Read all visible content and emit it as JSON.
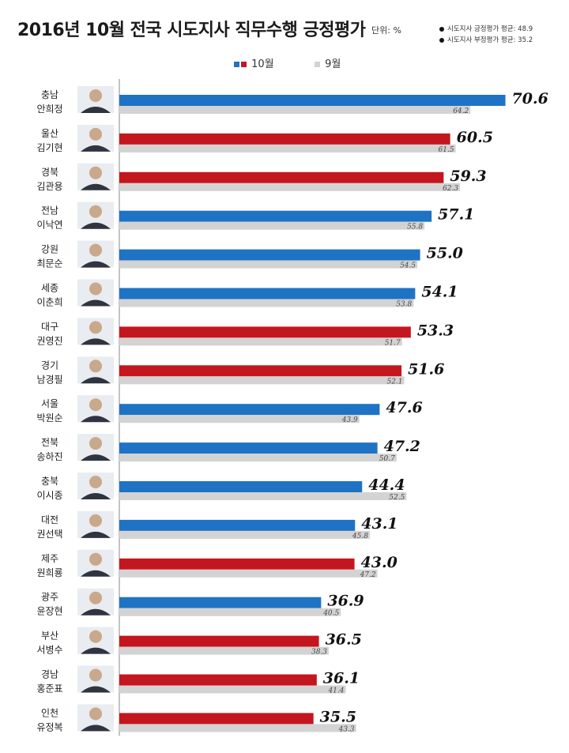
{
  "title": "2016년 10월 전국 시도지사 직무수행 긍정평가",
  "unit": "단위: %",
  "averages": [
    {
      "label": "시도지사 긍정평가 평균: 48.9"
    },
    {
      "label": "시도지사 부정평가 평균: 35.2"
    }
  ],
  "colors": {
    "blue": "#1f73c4",
    "red": "#c4161e",
    "prev": "#d3d3d3"
  },
  "chart_data": {
    "type": "bar",
    "orientation": "horizontal",
    "title": "2016년 10월 전국 시도지사 직무수행 긍정평가",
    "legend": [
      "10월",
      "9월"
    ],
    "legend_position": "top",
    "xlim": [
      0,
      75
    ],
    "categories": [
      {
        "region": "충남",
        "name": "안희정",
        "party_color": "blue"
      },
      {
        "region": "울산",
        "name": "김기현",
        "party_color": "red"
      },
      {
        "region": "경북",
        "name": "김관용",
        "party_color": "red"
      },
      {
        "region": "전남",
        "name": "이낙연",
        "party_color": "blue"
      },
      {
        "region": "강원",
        "name": "최문순",
        "party_color": "blue"
      },
      {
        "region": "세종",
        "name": "이춘희",
        "party_color": "blue"
      },
      {
        "region": "대구",
        "name": "권영진",
        "party_color": "red"
      },
      {
        "region": "경기",
        "name": "남경필",
        "party_color": "red"
      },
      {
        "region": "서울",
        "name": "박원순",
        "party_color": "blue"
      },
      {
        "region": "전북",
        "name": "송하진",
        "party_color": "blue"
      },
      {
        "region": "충북",
        "name": "이시종",
        "party_color": "blue"
      },
      {
        "region": "대전",
        "name": "권선택",
        "party_color": "blue"
      },
      {
        "region": "제주",
        "name": "원희룡",
        "party_color": "red"
      },
      {
        "region": "광주",
        "name": "윤장현",
        "party_color": "blue"
      },
      {
        "region": "부산",
        "name": "서병수",
        "party_color": "red"
      },
      {
        "region": "경남",
        "name": "홍준표",
        "party_color": "red"
      },
      {
        "region": "인천",
        "name": "유정복",
        "party_color": "red"
      }
    ],
    "series": [
      {
        "name": "10월",
        "values": [
          70.6,
          60.5,
          59.3,
          57.1,
          55.0,
          54.1,
          53.3,
          51.6,
          47.6,
          47.2,
          44.4,
          43.1,
          43.0,
          36.9,
          36.5,
          36.1,
          35.5
        ]
      },
      {
        "name": "9월",
        "values": [
          64.2,
          61.5,
          62.3,
          55.8,
          54.5,
          53.8,
          51.7,
          52.1,
          43.9,
          50.7,
          52.5,
          45.8,
          47.2,
          40.5,
          38.3,
          41.4,
          43.3
        ]
      }
    ]
  }
}
